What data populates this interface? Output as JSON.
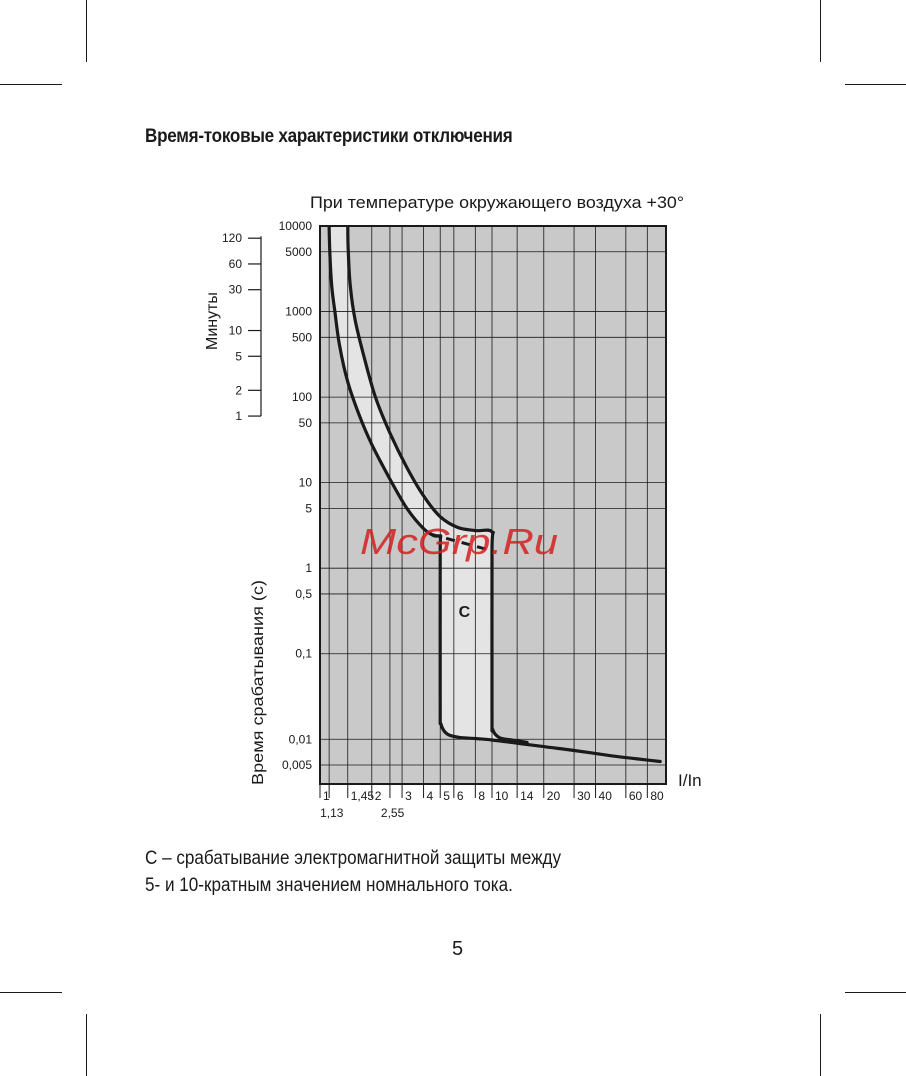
{
  "page": {
    "heading": "Время-токовые характеристики отключения",
    "footnote_line1": "C – срабатывание электромагнитной защиты между",
    "footnote_line2": "5- и 10-кратным значением номнального тока.",
    "page_number": "5",
    "watermark": "McGrp.Ru"
  },
  "chart_data": {
    "type": "line",
    "title": "При температуре окружающего воздуха +30°",
    "xlabel": "I/In",
    "ylabel": "Время срабатывания (с)",
    "ylabel_minutes": "Минуты",
    "x_scale": "log",
    "y_scale": "log",
    "xlim": [
      1,
      100
    ],
    "ylim": [
      0.003,
      10000
    ],
    "x_ticks": [
      1,
      1.13,
      1.45,
      2,
      2.55,
      3,
      4,
      5,
      6,
      8,
      10,
      14,
      20,
      30,
      40,
      60,
      80
    ],
    "x_tick_labels_top": [
      {
        "x": 1,
        "label": "1"
      },
      {
        "x": 1.45,
        "label": "1,45"
      },
      {
        "x": 2,
        "label": "2"
      },
      {
        "x": 3,
        "label": "3"
      },
      {
        "x": 4,
        "label": "4"
      },
      {
        "x": 5,
        "label": "5"
      },
      {
        "x": 6,
        "label": "6"
      },
      {
        "x": 8,
        "label": "8"
      },
      {
        "x": 10,
        "label": "10"
      },
      {
        "x": 14,
        "label": "14"
      },
      {
        "x": 20,
        "label": "20"
      },
      {
        "x": 30,
        "label": "30"
      },
      {
        "x": 40,
        "label": "40"
      },
      {
        "x": 60,
        "label": "60"
      },
      {
        "x": 80,
        "label": "80"
      }
    ],
    "x_tick_labels_bottom": [
      {
        "x": 1.13,
        "label": "1,13"
      },
      {
        "x": 2.55,
        "label": "2,55"
      }
    ],
    "y_tick_labels": [
      {
        "y": 10000,
        "label": "10000"
      },
      {
        "y": 5000,
        "label": "5000"
      },
      {
        "y": 1000,
        "label": "1000"
      },
      {
        "y": 500,
        "label": "500"
      },
      {
        "y": 100,
        "label": "100"
      },
      {
        "y": 50,
        "label": "50"
      },
      {
        "y": 10,
        "label": "10"
      },
      {
        "y": 5,
        "label": "5"
      },
      {
        "y": 1,
        "label": "1"
      },
      {
        "y": 0.5,
        "label": "0,5"
      },
      {
        "y": 0.1,
        "label": "0,1"
      },
      {
        "y": 0.01,
        "label": "0,01"
      },
      {
        "y": 0.005,
        "label": "0,005"
      }
    ],
    "y_gridlines": [
      10000,
      5000,
      1000,
      500,
      100,
      50,
      10,
      5,
      1,
      0.5,
      0.1,
      0.01,
      0.005
    ],
    "minute_tick_labels": [
      {
        "y": 7200,
        "label": "120"
      },
      {
        "y": 3600,
        "label": "60"
      },
      {
        "y": 1800,
        "label": "30"
      },
      {
        "y": 600,
        "label": "10"
      },
      {
        "y": 300,
        "label": "5"
      },
      {
        "y": 120,
        "label": "2"
      },
      {
        "y": 60,
        "label": "1"
      }
    ],
    "grid": true,
    "region_label": {
      "label": "C",
      "x": 6.4,
      "y": 0.27
    },
    "series": [
      {
        "x": [
          1.13,
          1.14,
          1.17,
          1.22,
          1.3,
          1.45,
          1.7,
          2.0,
          2.55,
          3.2,
          4.0,
          4.6,
          5.0,
          5.0,
          5.0,
          5.05,
          5.5,
          6.5,
          8,
          10,
          14,
          20,
          30,
          50,
          70,
          95
        ],
        "y": [
          10000,
          5000,
          2000,
          1000,
          400,
          150,
          60,
          28,
          11,
          5,
          2.9,
          2.4,
          2.3,
          1.5,
          0.025,
          0.015,
          0.0115,
          0.0105,
          0.0102,
          0.0098,
          0.009,
          0.0082,
          0.0074,
          0.0064,
          0.0059,
          0.0055
        ]
      },
      {
        "x": [
          1.45,
          1.46,
          1.5,
          1.6,
          1.8,
          2.1,
          2.55,
          3.2,
          4.0,
          5.0,
          6.3,
          8.0,
          10.0,
          10.0,
          10.0,
          10.1,
          11,
          13,
          16
        ],
        "y": [
          10000,
          5000,
          2000,
          800,
          300,
          100,
          38,
          15,
          7,
          4,
          3,
          2.75,
          2.65,
          1.5,
          0.02,
          0.013,
          0.0105,
          0.0098,
          0.0092
        ]
      }
    ],
    "dashed_segment": {
      "x": [
        4.4,
        10
      ],
      "y": [
        2.5,
        1.6
      ]
    }
  }
}
